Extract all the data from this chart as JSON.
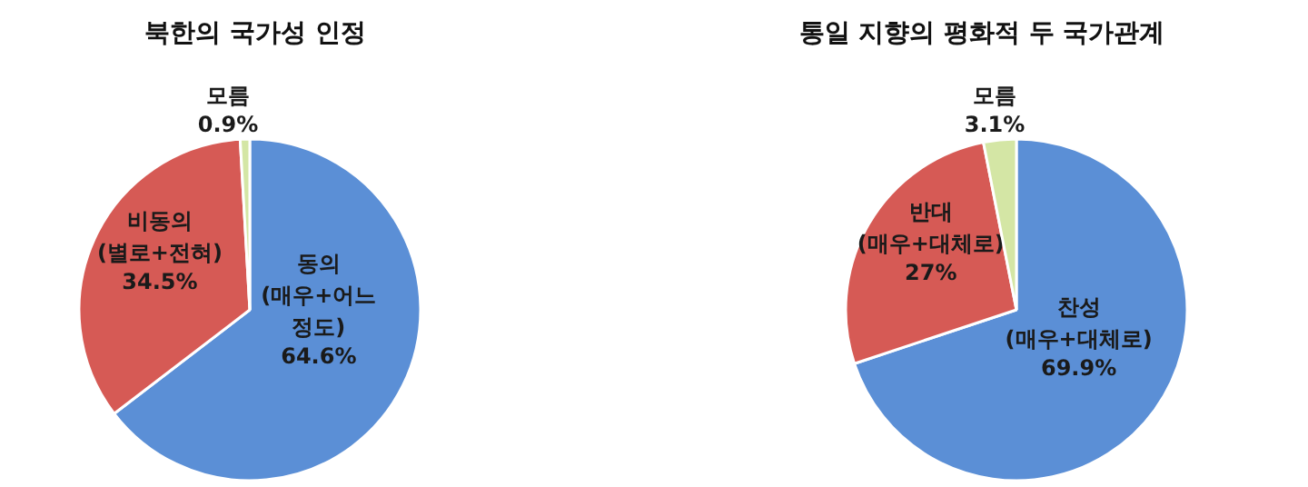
{
  "chart_data": [
    {
      "type": "pie",
      "title": "북한의 국가성 인정",
      "categories": [
        "동의\n(매우+어느\n정도)",
        "비동의\n(별로+전혀)",
        "모름"
      ],
      "values": [
        64.6,
        34.5,
        0.9
      ],
      "colors": [
        "#5b8fd6",
        "#d65a55",
        "#d4e6a5"
      ],
      "value_labels": [
        "64.6%",
        "34.5%",
        "0.9%"
      ]
    },
    {
      "type": "pie",
      "title": "통일 지향의 평화적 두 국가관계",
      "categories": [
        "찬성\n(매우+대체로)",
        "반대\n(매우+대체로)",
        "모름"
      ],
      "values": [
        69.9,
        27,
        3.1
      ],
      "colors": [
        "#5b8fd6",
        "#d65a55",
        "#d4e6a5"
      ],
      "value_labels": [
        "69.9%",
        "27%",
        "3.1%"
      ]
    }
  ]
}
